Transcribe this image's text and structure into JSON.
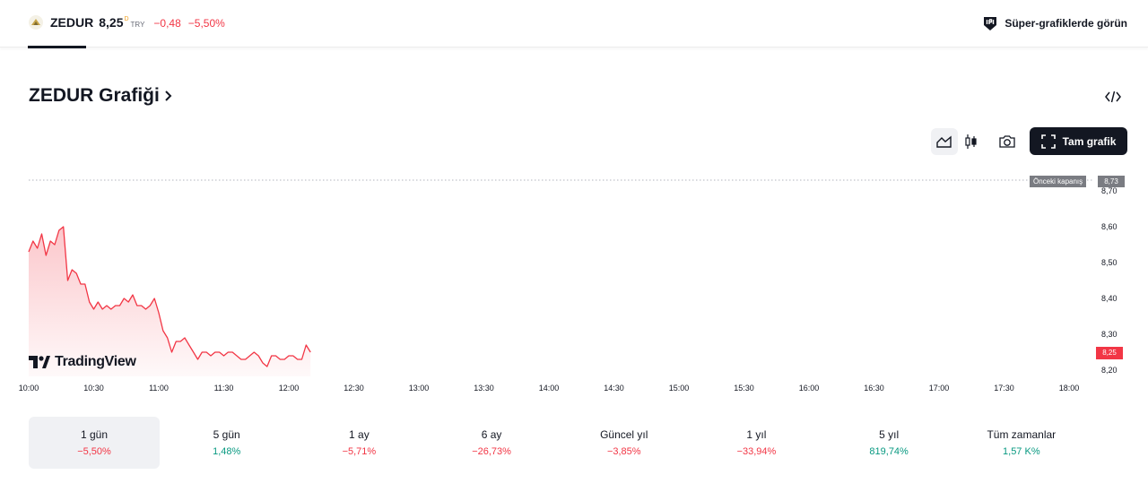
{
  "header": {
    "symbol": "ZEDUR",
    "last_price": "8,25",
    "price_suffix": "D",
    "currency": "TRY",
    "change": "−0,48",
    "change_pct": "−5,50%",
    "super_charts_label": "Süper-grafiklerde görün"
  },
  "title": {
    "text": "ZEDUR Grafiği"
  },
  "toolbar": {
    "fullscreen_label": "Tam grafik",
    "icons": [
      "area-chart-icon",
      "candles-icon",
      "camera-icon",
      "fullscreen-icon",
      "embed-code-icon"
    ]
  },
  "chart": {
    "previous_close_label": "Önceki kapanış",
    "previous_close_value": "8,73",
    "last_value": "8,25",
    "brand": "TradingView",
    "x_ticks": [
      "10:00",
      "10:30",
      "11:00",
      "11:30",
      "12:00",
      "12:30",
      "13:00",
      "13:30",
      "14:00",
      "14:30",
      "15:00",
      "15:30",
      "16:00",
      "16:30",
      "17:00",
      "17:30",
      "18:00"
    ],
    "y_ticks": [
      "8,70",
      "8,60",
      "8,50",
      "8,40",
      "8,30",
      "8,20"
    ]
  },
  "chart_data": {
    "type": "area",
    "title": "",
    "xlabel": "",
    "ylabel": "",
    "ylim": [
      8.19,
      8.74
    ],
    "grid": false,
    "previous_close": 8.73,
    "last": 8.25,
    "series": [
      {
        "color": "#f23645",
        "x": [
          "10:00",
          "10:02",
          "10:04",
          "10:06",
          "10:08",
          "10:10",
          "10:12",
          "10:14",
          "10:16",
          "10:18",
          "10:20",
          "10:22",
          "10:24",
          "10:26",
          "10:28",
          "10:30",
          "10:32",
          "10:34",
          "10:36",
          "10:38",
          "10:40",
          "10:42",
          "10:44",
          "10:46",
          "10:48",
          "10:50",
          "10:52",
          "10:54",
          "10:56",
          "10:58",
          "11:00",
          "11:02",
          "11:04",
          "11:06",
          "11:08",
          "11:10",
          "11:12",
          "11:14",
          "11:16",
          "11:18",
          "11:20",
          "11:22",
          "11:24",
          "11:26",
          "11:28",
          "11:30",
          "11:32",
          "11:34",
          "11:36",
          "11:38",
          "11:40",
          "11:42",
          "11:44",
          "11:46",
          "11:48",
          "11:50",
          "11:52",
          "11:54",
          "11:56",
          "11:58",
          "12:00",
          "12:02",
          "12:04",
          "12:06",
          "12:08",
          "12:10"
        ],
        "y": [
          8.53,
          8.56,
          8.54,
          8.58,
          8.52,
          8.56,
          8.55,
          8.59,
          8.6,
          8.45,
          8.48,
          8.47,
          8.44,
          8.44,
          8.39,
          8.37,
          8.39,
          8.37,
          8.38,
          8.37,
          8.38,
          8.38,
          8.4,
          8.39,
          8.41,
          8.38,
          8.38,
          8.37,
          8.38,
          8.4,
          8.36,
          8.31,
          8.29,
          8.25,
          8.28,
          8.28,
          8.29,
          8.27,
          8.25,
          8.23,
          8.25,
          8.25,
          8.24,
          8.25,
          8.25,
          8.24,
          8.25,
          8.25,
          8.24,
          8.23,
          8.23,
          8.24,
          8.25,
          8.24,
          8.22,
          8.21,
          8.24,
          8.24,
          8.23,
          8.23,
          8.24,
          8.24,
          8.23,
          8.23,
          8.27,
          8.25
        ]
      }
    ]
  },
  "ranges": [
    {
      "label": "1 gün",
      "value": "−5,50%",
      "trend": "neg",
      "selected": true
    },
    {
      "label": "5 gün",
      "value": "1,48%",
      "trend": "pos",
      "selected": false
    },
    {
      "label": "1 ay",
      "value": "−5,71%",
      "trend": "neg",
      "selected": false
    },
    {
      "label": "6 ay",
      "value": "−26,73%",
      "trend": "neg",
      "selected": false
    },
    {
      "label": "Güncel yıl",
      "value": "−3,85%",
      "trend": "neg",
      "selected": false
    },
    {
      "label": "1 yıl",
      "value": "−33,94%",
      "trend": "neg",
      "selected": false
    },
    {
      "label": "5 yıl",
      "value": "819,74%",
      "trend": "pos",
      "selected": false
    },
    {
      "label": "Tüm zamanlar",
      "value": "1,57 K%",
      "trend": "pos",
      "selected": false
    }
  ],
  "colors": {
    "negative": "#f23645",
    "positive": "#089981",
    "text": "#131722",
    "selected_bg": "#f0f1f4",
    "dark_button": "#131722"
  }
}
